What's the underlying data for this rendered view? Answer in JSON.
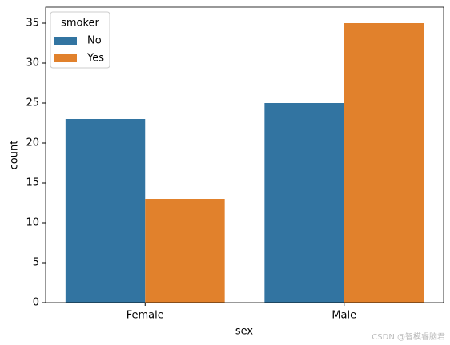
{
  "chart_data": {
    "type": "grouped_bar",
    "xlabel": "sex",
    "ylabel": "count",
    "categories": [
      "Female",
      "Male"
    ],
    "series": [
      {
        "name": "No",
        "color": "#3274a1",
        "values": [
          23,
          25
        ]
      },
      {
        "name": "Yes",
        "color": "#e1812c",
        "values": [
          13,
          35
        ]
      }
    ],
    "ylim": [
      0,
      37
    ],
    "yticks": [
      0,
      5,
      10,
      15,
      20,
      25,
      30,
      35
    ],
    "grid": false,
    "legend": {
      "title": "smoker",
      "position": "upper-left"
    }
  },
  "watermark": "CSDN @智模睿脑君"
}
